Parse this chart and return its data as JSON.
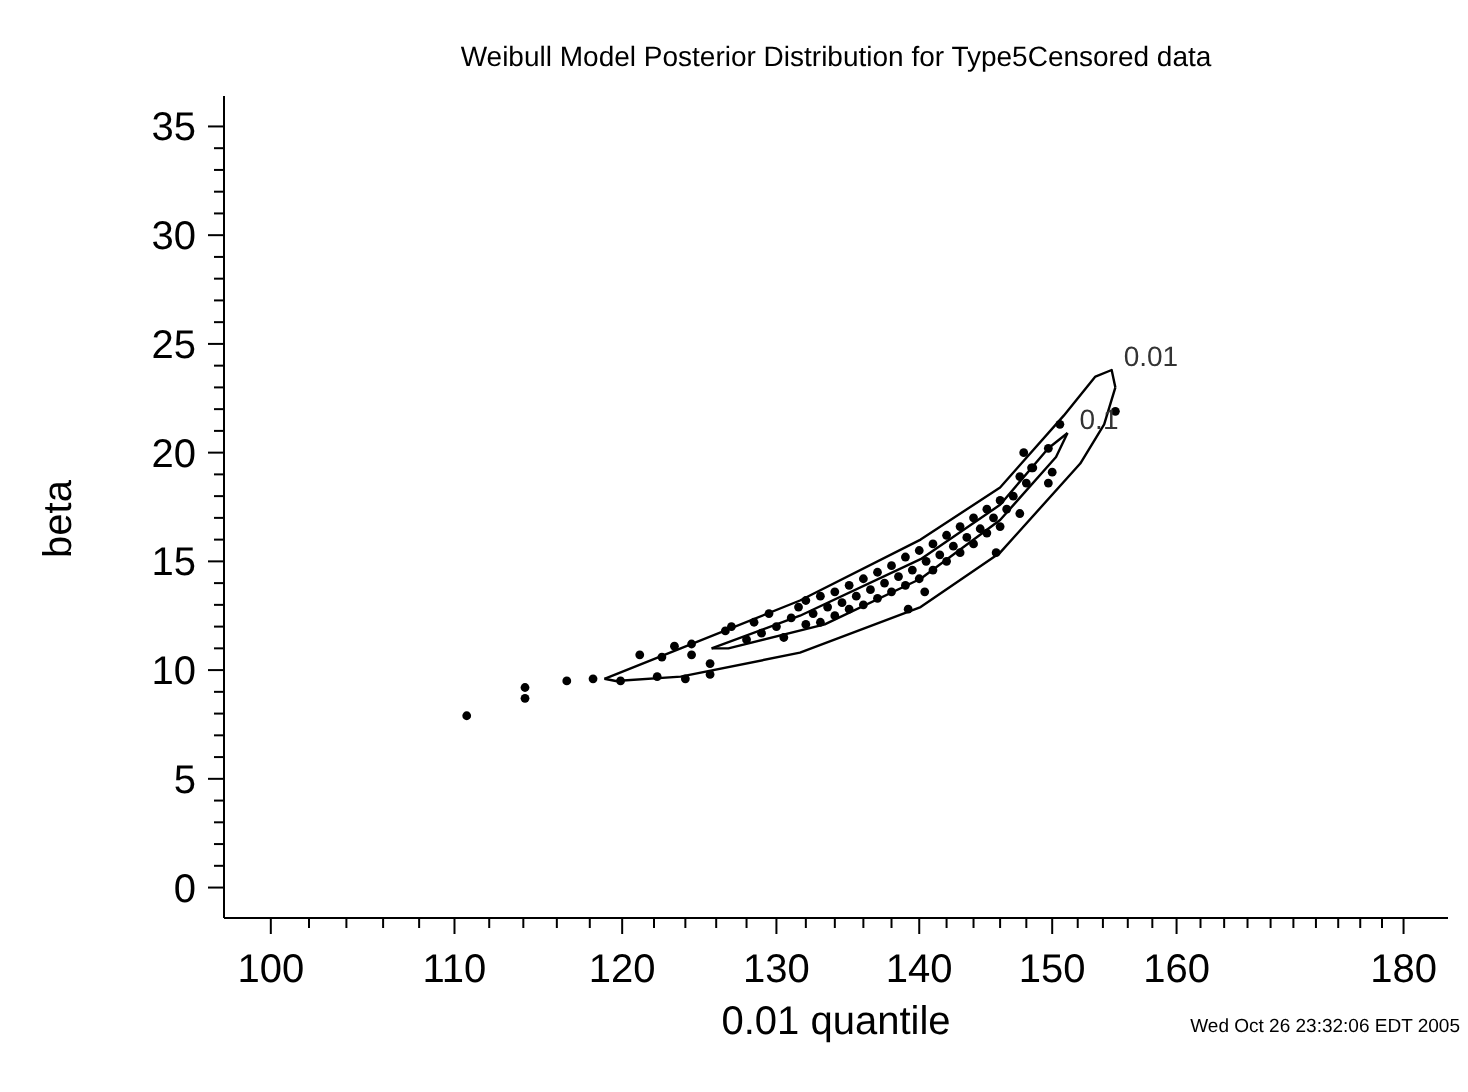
{
  "chart_data": {
    "type": "scatter",
    "title": "Weibull Model Posterior Distribution for Type5Censored data",
    "xlabel": "0.01 quantile",
    "ylabel": "beta",
    "annotations": [
      "Wed Oct 26 23:32:06 EDT 2005"
    ],
    "log": "x",
    "marker": "circle",
    "grid": false,
    "legend": false,
    "xlim": [
      97.6,
      184.2
    ],
    "ylim": [
      -1.4,
      36.4
    ],
    "xticks": [
      100,
      {
        "value": 102,
        "label": null
      },
      {
        "value": 104,
        "label": null
      },
      {
        "value": 106,
        "label": null
      },
      {
        "value": 108,
        "label": null
      },
      110,
      {
        "value": 112,
        "label": null
      },
      {
        "value": 114,
        "label": null
      },
      {
        "value": 116,
        "label": null
      },
      {
        "value": 118,
        "label": null
      },
      120,
      {
        "value": 122,
        "label": null
      },
      {
        "value": 124,
        "label": null
      },
      {
        "value": 126,
        "label": null
      },
      {
        "value": 128,
        "label": null
      },
      130,
      {
        "value": 132,
        "label": null
      },
      {
        "value": 134,
        "label": null
      },
      {
        "value": 136,
        "label": null
      },
      {
        "value": 138,
        "label": null
      },
      140,
      {
        "value": 142,
        "label": null
      },
      {
        "value": 144,
        "label": null
      },
      {
        "value": 146,
        "label": null
      },
      {
        "value": 148,
        "label": null
      },
      150,
      {
        "value": 152,
        "label": null
      },
      {
        "value": 154,
        "label": null
      },
      {
        "value": 156,
        "label": null
      },
      {
        "value": 158,
        "label": null
      },
      160,
      {
        "value": 162,
        "label": null
      },
      {
        "value": 164,
        "label": null
      },
      {
        "value": 166,
        "label": null
      },
      {
        "value": 168,
        "label": null
      },
      {
        "value": 170,
        "label": null
      },
      {
        "value": 172,
        "label": null
      },
      {
        "value": 174,
        "label": null
      },
      {
        "value": 176,
        "label": null
      },
      {
        "value": 178,
        "label": null
      },
      180
    ],
    "yticks": [
      0,
      {
        "value": 1,
        "label": null
      },
      {
        "value": 2,
        "label": null
      },
      {
        "value": 3,
        "label": null
      },
      {
        "value": 4,
        "label": null
      },
      5,
      {
        "value": 6,
        "label": null
      },
      {
        "value": 7,
        "label": null
      },
      {
        "value": 8,
        "label": null
      },
      {
        "value": 9,
        "label": null
      },
      10,
      {
        "value": 11,
        "label": null
      },
      {
        "value": 12,
        "label": null
      },
      {
        "value": 13,
        "label": null
      },
      {
        "value": 14,
        "label": null
      },
      15,
      {
        "value": 16,
        "label": null
      },
      {
        "value": 17,
        "label": null
      },
      {
        "value": 18,
        "label": null
      },
      {
        "value": 19,
        "label": null
      },
      20,
      {
        "value": 21,
        "label": null
      },
      {
        "value": 22,
        "label": null
      },
      {
        "value": 23,
        "label": null
      },
      {
        "value": 24,
        "label": null
      },
      25,
      {
        "value": 26,
        "label": null
      },
      {
        "value": 27,
        "label": null
      },
      {
        "value": 28,
        "label": null
      },
      {
        "value": 29,
        "label": null
      },
      30,
      {
        "value": 31,
        "label": null
      },
      {
        "value": 32,
        "label": null
      },
      {
        "value": 33,
        "label": null
      },
      {
        "value": 34,
        "label": null
      },
      35
    ],
    "series": [
      {
        "color": "#000000",
        "x": [
          110.7,
          114.1,
          114.1,
          116.6,
          118.2,
          119.9,
          121.1,
          122.2,
          122.5,
          123.3,
          124.0,
          124.4,
          124.4,
          125.6,
          125.6,
          126.6,
          140.4,
          139.2,
          145.7,
          155.0,
          150.6,
          149.7,
          147.8,
          150.0,
          148.4,
          147.5,
          149.7,
          127,
          128,
          128.5,
          129,
          129.5,
          130,
          130.5,
          131,
          131.5,
          132,
          132,
          132.5,
          133,
          133,
          133.5,
          134,
          134,
          134.5,
          135,
          135,
          135.5,
          136,
          136,
          136.5,
          137,
          137,
          137.5,
          138,
          138,
          138.5,
          139,
          139,
          139.5,
          140,
          140,
          140.5,
          141,
          141,
          141.5,
          142,
          142,
          142.5,
          143,
          143,
          143.5,
          144,
          144,
          144.5,
          145,
          145,
          145.5,
          146,
          146,
          146.5,
          147,
          147.5,
          148,
          148.5
        ],
        "values": [
          7.9,
          9.2,
          8.7,
          9.5,
          9.6,
          9.5,
          10.7,
          9.7,
          10.6,
          11.1,
          9.6,
          11.2,
          10.7,
          10.3,
          9.8,
          11.8,
          13.6,
          12.8,
          15.4,
          21.9,
          21.3,
          20.2,
          20.0,
          19.1,
          19.3,
          18.9,
          18.6,
          12.0,
          11.4,
          12.2,
          11.7,
          12.6,
          12.0,
          11.5,
          12.4,
          12.9,
          12.1,
          13.2,
          12.6,
          12.2,
          13.4,
          12.9,
          13.6,
          12.5,
          13.1,
          13.9,
          12.8,
          13.4,
          14.2,
          13.0,
          13.7,
          14.5,
          13.3,
          14.0,
          14.8,
          13.6,
          14.3,
          15.2,
          13.9,
          14.6,
          15.5,
          14.2,
          15.0,
          15.8,
          14.6,
          15.3,
          16.2,
          15.0,
          15.7,
          16.6,
          15.4,
          16.1,
          17.0,
          15.8,
          16.5,
          17.4,
          16.3,
          17.0,
          17.8,
          16.6,
          17.4,
          18.0,
          17.2,
          18.6,
          19.3
        ]
      },
      {
        "type": "line",
        "marker": "none",
        "name": "0.01",
        "color": "#000000",
        "x": [
          118.9,
          123.7,
          131.6,
          140.1,
          146.0,
          150.9,
          153.4,
          154.7,
          155.0
        ],
        "values": [
          9.6,
          11.0,
          13.2,
          16.0,
          18.4,
          21.7,
          23.5,
          23.8,
          23.0
        ]
      },
      {
        "type": "line",
        "marker": "none",
        "color": "#000000",
        "x": [
          155.0,
          154.1,
          152.2,
          146.0,
          140.1,
          131.6,
          123.7,
          119.6,
          118.9
        ],
        "values": [
          23.0,
          21.3,
          19.5,
          15.4,
          12.9,
          10.8,
          9.7,
          9.5,
          9.6
        ]
      },
      {
        "type": "line",
        "marker": "none",
        "name": "0.1",
        "color": "#000000",
        "x": [
          125.7,
          131.6,
          140.1,
          146.0,
          149.7,
          151.2
        ],
        "values": [
          11.0,
          12.5,
          15.1,
          17.6,
          20.2,
          20.9
        ]
      },
      {
        "type": "line",
        "marker": "none",
        "color": "#000000",
        "x": [
          151.2,
          150.3,
          146.0,
          140.1,
          133.3,
          126.8,
          125.7
        ],
        "values": [
          20.9,
          19.8,
          16.9,
          14.2,
          12.1,
          11.0,
          11.0
        ]
      }
    ]
  }
}
